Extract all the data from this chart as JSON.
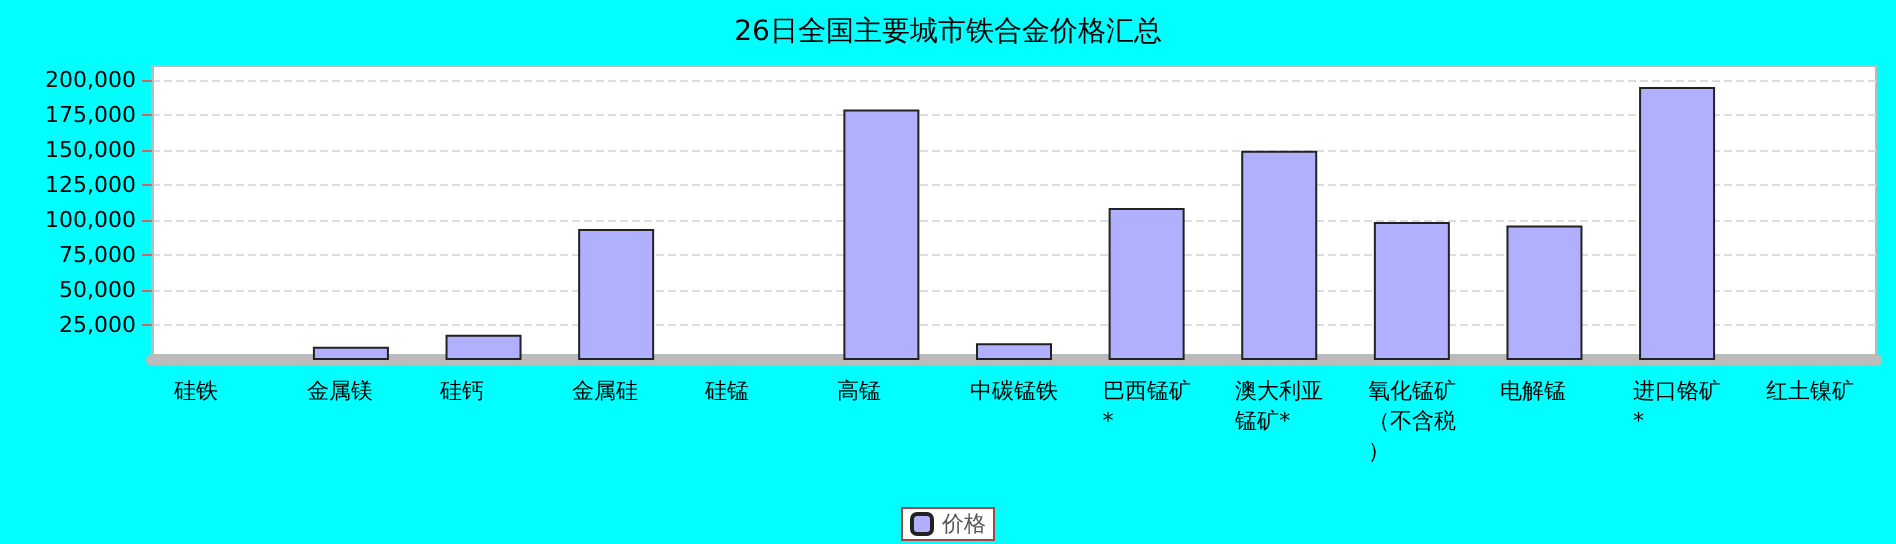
{
  "chart_data": {
    "type": "bar",
    "title": "26日全国主要城市铁合金价格汇总",
    "categories": [
      "硅铁",
      "金属镁",
      "硅钙",
      "金属硅",
      "硅锰",
      "高锰",
      "中碳锰铁",
      "巴西锰矿*",
      "澳大利亚锰矿*",
      "氧化锰矿（不含税）",
      "电解锰",
      "进口铬矿*",
      "红土镍矿"
    ],
    "series": [
      {
        "name": "价格",
        "color": "#b0b0ff",
        "values": [
          null,
          9500,
          18000,
          93500,
          null,
          179000,
          12000,
          108500,
          149500,
          98500,
          96000,
          195000,
          null
        ]
      }
    ],
    "ylim": [
      0,
      210000
    ],
    "yticks": [
      {
        "value": 25000,
        "label": "25,000"
      },
      {
        "value": 50000,
        "label": "50,000"
      },
      {
        "value": 75000,
        "label": "75,000"
      },
      {
        "value": 100000,
        "label": "100,000"
      },
      {
        "value": 125000,
        "label": "125,000"
      },
      {
        "value": 150000,
        "label": "150,000"
      },
      {
        "value": 175000,
        "label": "175,000"
      },
      {
        "value": 200000,
        "label": "200,000"
      }
    ],
    "grid": "y",
    "legend": "bottom"
  }
}
